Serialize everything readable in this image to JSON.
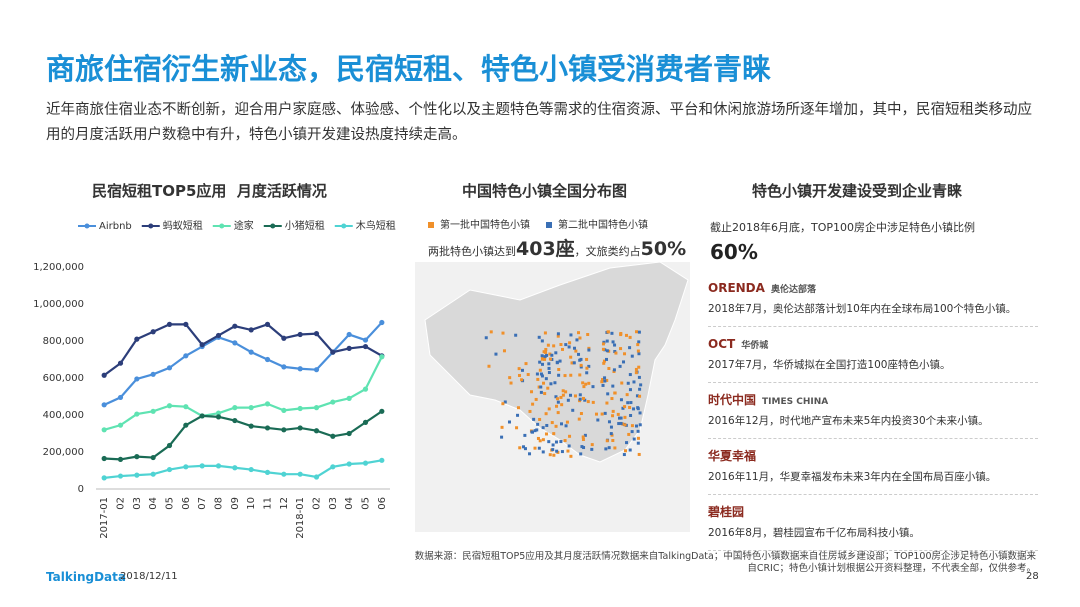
{
  "title": "商旅住宿衍生新业态，民宿短租、特色小镇受消费者青睐",
  "intro": "近年商旅住宿业态不断创新，迎合用户家庭感、体验感、个性化以及主题特色等需求的住宿资源、平台和休闲旅游场所逐年增加，其中，民宿短租类移动应用的月度活跃用户数稳中有升，特色小镇开发建设热度持续走高。",
  "chart_data": {
    "type": "line",
    "title": "民宿短租TOP5应用  月度活跃情况",
    "categories": [
      "2017-01",
      "02",
      "03",
      "04",
      "05",
      "06",
      "07",
      "08",
      "09",
      "10",
      "11",
      "12",
      "2018-01",
      "02",
      "03",
      "04",
      "05",
      "06"
    ],
    "series": [
      {
        "name": "Airbnb",
        "color": "#4a8fdb",
        "values": [
          455000,
          495000,
          595000,
          620000,
          655000,
          720000,
          770000,
          820000,
          790000,
          740000,
          700000,
          660000,
          650000,
          645000,
          740000,
          835000,
          805000,
          900000
        ]
      },
      {
        "name": "蚂蚁短租",
        "color": "#2c3e7a",
        "values": [
          615000,
          680000,
          810000,
          850000,
          890000,
          890000,
          780000,
          830000,
          880000,
          860000,
          890000,
          815000,
          835000,
          840000,
          740000,
          760000,
          770000,
          720000
        ]
      },
      {
        "name": "途家",
        "color": "#5fe3b2",
        "values": [
          320000,
          345000,
          405000,
          420000,
          450000,
          445000,
          395000,
          410000,
          440000,
          440000,
          460000,
          425000,
          435000,
          440000,
          470000,
          490000,
          540000,
          715000
        ]
      },
      {
        "name": "小猪短租",
        "color": "#1a6b55",
        "values": [
          165000,
          160000,
          175000,
          170000,
          235000,
          345000,
          395000,
          390000,
          370000,
          340000,
          330000,
          320000,
          330000,
          315000,
          285000,
          300000,
          360000,
          420000
        ]
      },
      {
        "name": "木鸟短租",
        "color": "#4fd3d3",
        "values": [
          60000,
          70000,
          75000,
          80000,
          105000,
          120000,
          125000,
          125000,
          115000,
          105000,
          90000,
          80000,
          80000,
          65000,
          120000,
          135000,
          140000,
          155000
        ]
      }
    ],
    "ylim": [
      0,
      1200000
    ],
    "yticks": [
      0,
      {
        "value": 200000,
        "label": "200,000"
      },
      {
        "value": 400000,
        "label": "400,000"
      },
      {
        "value": 600000,
        "label": "600,000"
      },
      {
        "value": 800000,
        "label": "800,000"
      },
      {
        "value": 1000000,
        "label": "1,000,000"
      },
      {
        "value": 1200000,
        "label": "1,200,000"
      }
    ],
    "grid": false
  },
  "map_panel": {
    "title": "中国特色小镇全国分布图",
    "legend": [
      {
        "name": "第一批中国特色小镇",
        "color": "#f0902a"
      },
      {
        "name": "第二批中国特色小镇",
        "color": "#3a6fb5"
      }
    ],
    "note_prefix": "两批特色小镇达到",
    "note_count": "403座",
    "note_mid": "，文旅类约占",
    "note_share": "50%"
  },
  "right_panel": {
    "title": "特色小镇开发建设受到企业青睐",
    "note": "截止2018年6月底，TOP100房企中涉足特色小镇比例",
    "share": "60%",
    "items": [
      {
        "logo": "ORENDA",
        "logo_sub": "奥伦达部落",
        "text": "2018年7月，奥伦达部落计划10年内在全球布局100个特色小镇。"
      },
      {
        "logo": "OCT",
        "logo_sub": "华侨城",
        "text": "2017年7月，华侨城拟在全国打造100座特色小镇。"
      },
      {
        "logo": "时代中国",
        "logo_sub": "TIMES CHINA",
        "text": "2016年12月，时代地产宣布未来5年内投资30个未来小镇。"
      },
      {
        "logo": "华夏幸福",
        "text": "2016年11月，华夏幸福发布未来3年内在全国布局百座小镇。"
      },
      {
        "logo": "碧桂园",
        "text": "2016年8月，碧桂园宣布千亿布局科技小镇。"
      }
    ]
  },
  "footer": {
    "brand": "TalkingData",
    "date": "2018/12/11",
    "page": "28",
    "source": "数据来源：民宿短租TOP5应用及其月度活跃情况数据来自TalkingData；中国特色小镇数据来自住房城乡建设部；TOP100房企涉足特色小镇数据来自CRIC；特色小镇计划根据公开资料整理，不代表全部，仅供参考。"
  }
}
